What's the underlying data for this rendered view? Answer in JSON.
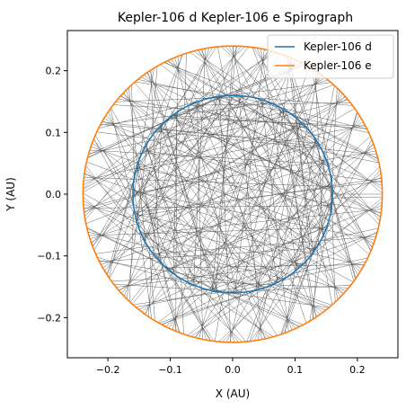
{
  "chart_data": {
    "type": "line",
    "title": "Kepler-106 d Kepler-106 e Spirograph",
    "xlabel": "X (AU)",
    "ylabel": "Y (AU)",
    "xlim": [
      -0.265,
      0.265
    ],
    "ylim": [
      -0.265,
      0.265
    ],
    "x_ticks": [
      -0.2,
      -0.1,
      0.0,
      0.1,
      0.2
    ],
    "y_ticks": [
      -0.2,
      -0.1,
      0.0,
      0.1,
      0.2
    ],
    "x_tick_labels": [
      "−0.2",
      "−0.1",
      "0.0",
      "0.1",
      "0.2"
    ],
    "y_tick_labels": [
      "−0.2",
      "−0.1",
      "0.0",
      "0.1",
      "0.2"
    ],
    "grid": false,
    "legend_position": "top-right",
    "series": [
      {
        "name": "Kepler-106 d",
        "shape": "circle",
        "radius_au": 0.16,
        "color": "#1f77b4"
      },
      {
        "name": "Kepler-106 e",
        "shape": "circle",
        "radius_au": 0.24,
        "color": "#ff7f0e"
      }
    ],
    "spirograph": {
      "color": "#4d4d4d",
      "connecting_lines": 320,
      "orbit_radius_1_au": 0.16,
      "orbit_radius_2_au": 0.24,
      "angular_ratio": 2.1
    }
  }
}
